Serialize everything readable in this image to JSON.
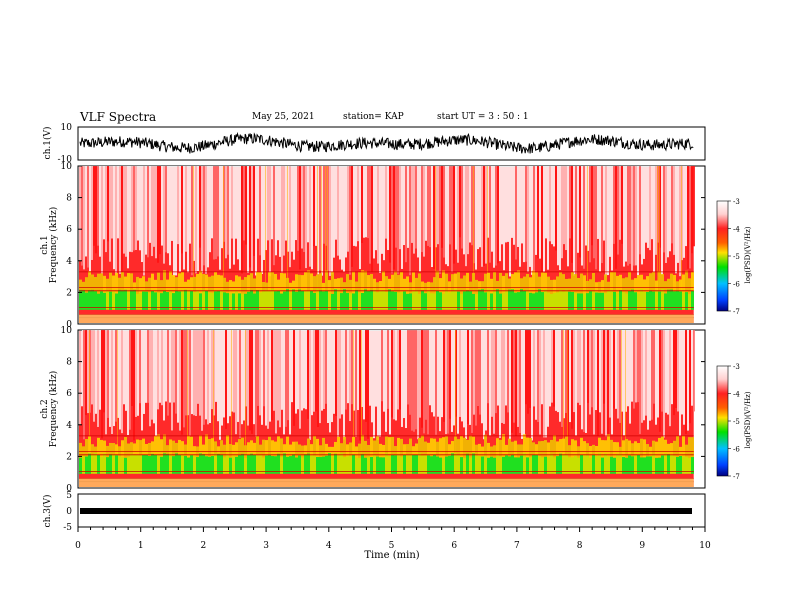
{
  "header": {
    "title": "VLF Spectra",
    "date": "May 25, 2021",
    "station": "station= KAP",
    "start": "start  UT =   3  : 50 : 1"
  },
  "colors": {
    "spectrogram": [
      "#ffffff",
      "#ffd0d0",
      "#ff3030",
      "#ff0000",
      "#ffe000",
      "#00e000",
      "#00c0ff",
      "#0000c0"
    ],
    "waveform": "#000000"
  },
  "chart_data": [
    {
      "type": "line",
      "title": "",
      "ylabel": "ch.1(V)",
      "xlim": [
        0,
        10
      ],
      "ylim": [
        -10,
        10
      ],
      "yticks": [
        "10",
        "-10"
      ],
      "description_values": "noisy waveform oscillating roughly between -6 and +6 V over 0-9.8 min"
    },
    {
      "type": "heatmap",
      "ylabel": "ch.1\nFrequency (kHz)",
      "xlim": [
        0,
        10
      ],
      "ylim": [
        0,
        10
      ],
      "yticks": [
        "0",
        "2",
        "4",
        "6",
        "8",
        "10"
      ],
      "data_extent_x": [
        0,
        9.82
      ],
      "colorbar": {
        "label": "log(PSD)(V²/Hz)",
        "ticks": [
          "-3",
          "-4",
          "-5",
          "-6",
          "-7"
        ],
        "range": [
          -7,
          -3
        ]
      }
    },
    {
      "type": "heatmap",
      "ylabel": "ch.2\nFrequency (kHz)",
      "xlim": [
        0,
        10
      ],
      "ylim": [
        0,
        10
      ],
      "yticks": [
        "0",
        "2",
        "4",
        "6",
        "8",
        "10"
      ],
      "data_extent_x": [
        0,
        9.82
      ],
      "colorbar": {
        "label": "log(PSD)(V²/Hz)",
        "ticks": [
          "-3",
          "-4",
          "-5",
          "-6",
          "-7"
        ],
        "range": [
          -7,
          -3
        ]
      }
    },
    {
      "type": "line",
      "ylabel": "ch.3(V)",
      "xlim": [
        0,
        10
      ],
      "ylim": [
        -5,
        5
      ],
      "yticks": [
        "5",
        "0",
        "-5"
      ],
      "xlabel": "Time  (min)",
      "xticks": [
        "0",
        "1",
        "2",
        "3",
        "4",
        "5",
        "6",
        "7",
        "8",
        "9",
        "10"
      ]
    }
  ]
}
